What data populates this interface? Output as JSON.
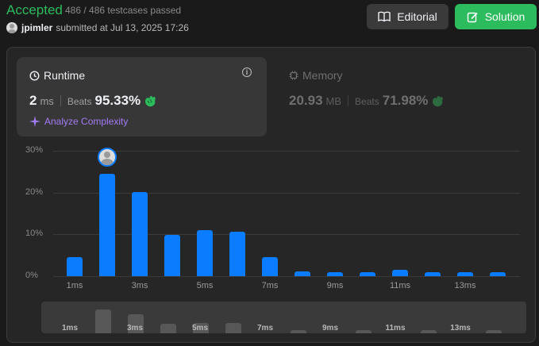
{
  "submission": {
    "status": "Accepted",
    "testcases": "486 / 486 testcases passed",
    "username": "jpimler",
    "submitted_text": "submitted at Jul 13, 2025 17:26"
  },
  "actions": {
    "editorial_label": "Editorial",
    "solution_label": "Solution"
  },
  "runtime": {
    "title": "Runtime",
    "value": "2",
    "unit": "ms",
    "beats_label": "Beats",
    "beats_pct": "95.33%",
    "analyze_label": "Analyze Complexity"
  },
  "memory": {
    "title": "Memory",
    "value": "20.93",
    "unit": "MB",
    "beats_label": "Beats",
    "beats_pct": "71.98%"
  },
  "colors": {
    "accepted": "#2cbb5d",
    "bar": "#0a7cff",
    "analyze": "#a27cf6"
  },
  "chart_data": {
    "type": "bar",
    "y_ticks": [
      "30%",
      "20%",
      "10%",
      "0%"
    ],
    "ylim": [
      0,
      30
    ],
    "x_tick_labels": [
      "1ms",
      "3ms",
      "5ms",
      "7ms",
      "9ms",
      "11ms",
      "13ms"
    ],
    "values": [
      4.5,
      24.5,
      20.2,
      9.8,
      11.0,
      10.6,
      4.5,
      1.2,
      0.9,
      0.9,
      1.6,
      0.9,
      0.9,
      0.9
    ],
    "selected_index": 1
  },
  "mini_chart": {
    "labels": [
      "1ms",
      "3ms",
      "5ms",
      "7ms",
      "9ms",
      "11ms",
      "13ms"
    ],
    "values": [
      0,
      30,
      24,
      12,
      13,
      13,
      0,
      4,
      0,
      4,
      0,
      4,
      0,
      4
    ]
  }
}
